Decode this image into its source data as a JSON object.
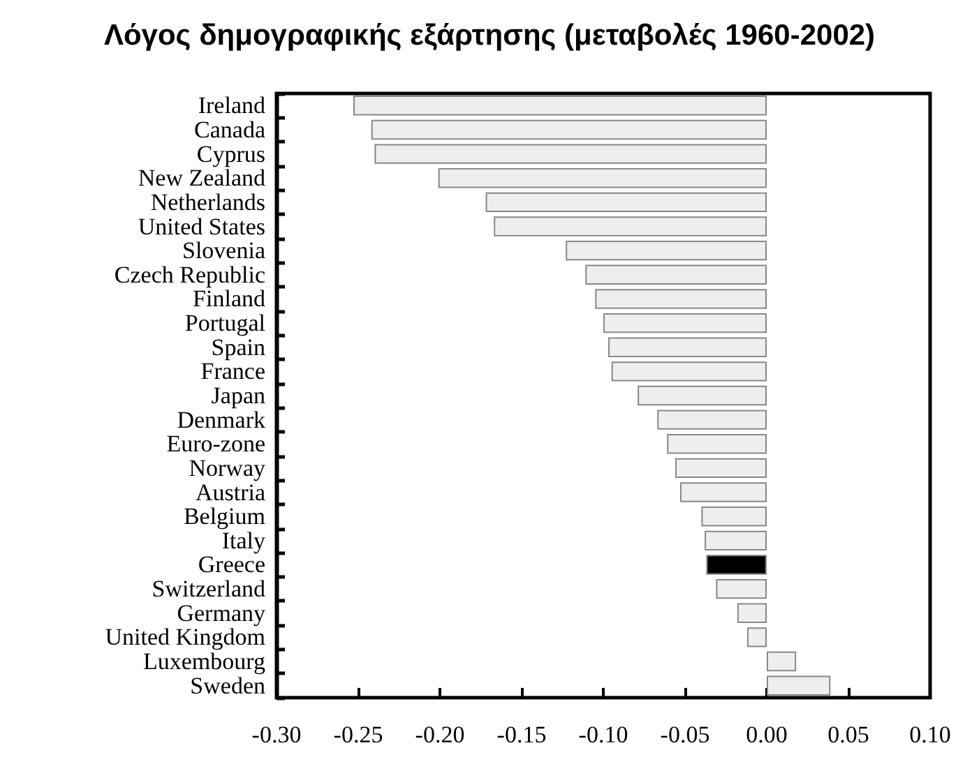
{
  "chart_data": {
    "type": "bar",
    "orientation": "horizontal",
    "title": "Λόγος δημογραφικής εξάρτησης (μεταβολές 1960-2002)",
    "categories": [
      "Ireland",
      "Canada",
      "Cyprus",
      "New Zealand",
      "Netherlands",
      "United States",
      "Slovenia",
      "Czech Republic",
      "Finland",
      "Portugal",
      "Spain",
      "France",
      "Japan",
      "Denmark",
      "Euro-zone",
      "Norway",
      "Austria",
      "Belgium",
      "Italy",
      "Greece",
      "Switzerland",
      "Germany",
      "United Kingdom",
      "Luxembourg",
      "Sweden"
    ],
    "values": [
      -0.253,
      -0.242,
      -0.24,
      -0.201,
      -0.172,
      -0.167,
      -0.123,
      -0.111,
      -0.105,
      -0.1,
      -0.097,
      -0.095,
      -0.079,
      -0.067,
      -0.061,
      -0.056,
      -0.053,
      -0.04,
      -0.038,
      -0.037,
      -0.031,
      -0.018,
      -0.012,
      0.018,
      0.039
    ],
    "colors": [
      "#eeeeee",
      "#eeeeee",
      "#eeeeee",
      "#eeeeee",
      "#eeeeee",
      "#eeeeee",
      "#eeeeee",
      "#eeeeee",
      "#eeeeee",
      "#eeeeee",
      "#eeeeee",
      "#eeeeee",
      "#eeeeee",
      "#eeeeee",
      "#eeeeee",
      "#eeeeee",
      "#eeeeee",
      "#eeeeee",
      "#eeeeee",
      "#000000",
      "#eeeeee",
      "#eeeeee",
      "#eeeeee",
      "#eeeeee",
      "#eeeeee"
    ],
    "xlim": [
      -0.3,
      0.1
    ],
    "xticks": [
      {
        "value": -0.3,
        "label": "-0.30"
      },
      {
        "value": -0.25,
        "label": "-0.25"
      },
      {
        "value": -0.2,
        "label": "-0.20"
      },
      {
        "value": -0.15,
        "label": "-0.15"
      },
      {
        "value": -0.1,
        "label": "-0.10"
      },
      {
        "value": -0.05,
        "label": "-0.05"
      },
      {
        "value": 0,
        "label": "0.00"
      },
      {
        "value": 0.05,
        "label": "0.05"
      },
      {
        "value": 0.1,
        "label": "0.10"
      }
    ],
    "grid": false
  }
}
